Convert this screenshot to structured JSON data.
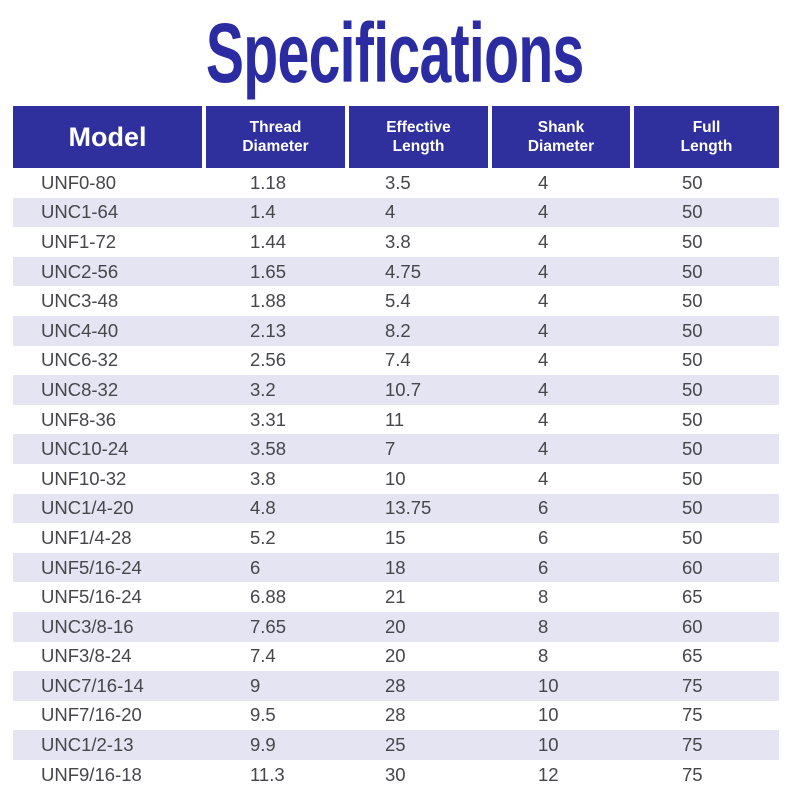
{
  "title": {
    "text": "Specifications"
  },
  "theme": {
    "header_bg": "#2f2f9d",
    "stripe": "#e4e4f2",
    "title_color": "#2b2ba2",
    "body_text": "#46464b",
    "page_bg": "#ffffff"
  },
  "table": {
    "columns": [
      "Model",
      "Thread\nDiameter",
      "Effective\nLength",
      "Shank\nDiameter",
      "Full\nLength"
    ],
    "rows": [
      [
        "UNF0-80",
        "1.18",
        "3.5",
        "4",
        "50"
      ],
      [
        "UNC1-64",
        "1.4",
        "4",
        "4",
        "50"
      ],
      [
        "UNF1-72",
        "1.44",
        "3.8",
        "4",
        "50"
      ],
      [
        "UNC2-56",
        "1.65",
        "4.75",
        "4",
        "50"
      ],
      [
        "UNC3-48",
        "1.88",
        "5.4",
        "4",
        "50"
      ],
      [
        "UNC4-40",
        "2.13",
        "8.2",
        "4",
        "50"
      ],
      [
        "UNC6-32",
        "2.56",
        "7.4",
        "4",
        "50"
      ],
      [
        "UNC8-32",
        "3.2",
        "10.7",
        "4",
        "50"
      ],
      [
        "UNF8-36",
        "3.31",
        "11",
        "4",
        "50"
      ],
      [
        "UNC10-24",
        "3.58",
        "7",
        "4",
        "50"
      ],
      [
        "UNF10-32",
        "3.8",
        "10",
        "4",
        "50"
      ],
      [
        "UNC1/4-20",
        "4.8",
        "13.75",
        "6",
        "50"
      ],
      [
        "UNF1/4-28",
        "5.2",
        "15",
        "6",
        "50"
      ],
      [
        "UNF5/16-24",
        "6",
        "18",
        "6",
        "60"
      ],
      [
        "UNF5/16-24",
        "6.88",
        "21",
        "8",
        "65"
      ],
      [
        "UNC3/8-16",
        "7.65",
        "20",
        "8",
        "60"
      ],
      [
        "UNF3/8-24",
        "7.4",
        "20",
        "8",
        "65"
      ],
      [
        "UNC7/16-14",
        "9",
        "28",
        "10",
        "75"
      ],
      [
        "UNF7/16-20",
        "9.5",
        "28",
        "10",
        "75"
      ],
      [
        "UNC1/2-13",
        "9.9",
        "25",
        "10",
        "75"
      ],
      [
        "UNF9/16-18",
        "11.3",
        "30",
        "12",
        "75"
      ]
    ]
  }
}
